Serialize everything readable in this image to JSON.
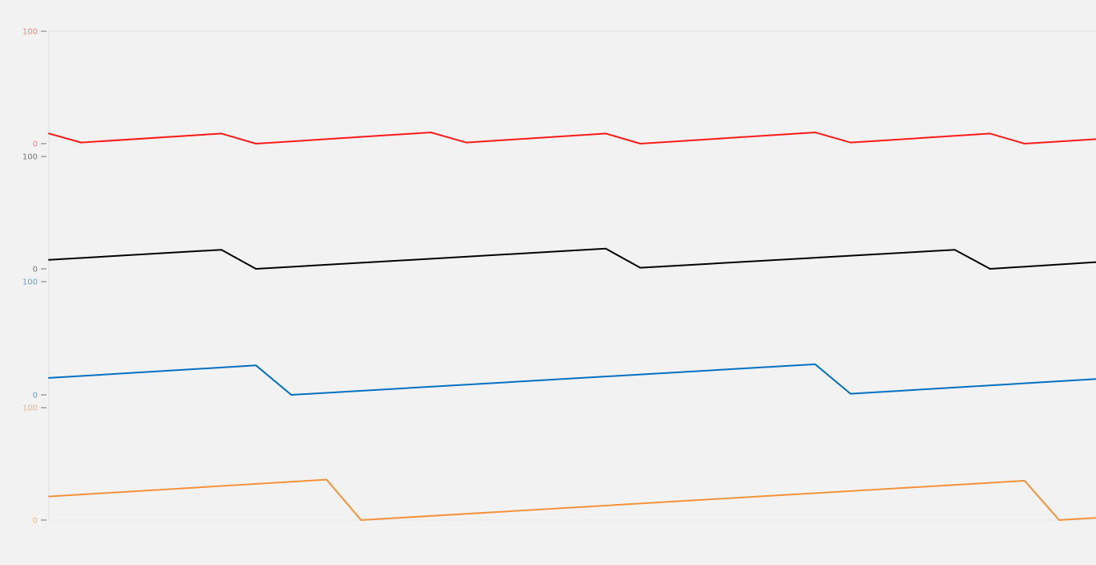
{
  "chart_data": {
    "type": "line",
    "title": "",
    "xlabel": "",
    "grid": false,
    "x_range": [
      0,
      1305
    ],
    "panels": [
      {
        "name": "",
        "color": "#ff1a1a",
        "tick_color": "#ff7f7f",
        "ylim": [
          0,
          100
        ],
        "tick_labels": [
          "100",
          "0"
        ],
        "series": {
          "x": [
            0,
            40,
            215,
            258,
            476,
            520,
            694,
            737,
            955,
            999,
            1173,
            1216,
            1305
          ],
          "y": [
            9,
            1,
            9,
            0,
            10,
            1,
            9,
            0,
            10,
            1,
            9,
            0,
            4
          ]
        }
      },
      {
        "name": "",
        "color": "#000000",
        "tick_color": "#777777",
        "ylim": [
          0,
          100
        ],
        "tick_labels": [
          "100",
          "0"
        ],
        "series": {
          "x": [
            0,
            215,
            258,
            694,
            737,
            1129,
            1173,
            1305
          ],
          "y": [
            8,
            17,
            0,
            18,
            1,
            17,
            0,
            6
          ]
        }
      },
      {
        "name": "",
        "color": "#0070c0",
        "tick_color": "#5ba3dc",
        "ylim": [
          0,
          100
        ],
        "tick_labels": [
          "100",
          "0"
        ],
        "series": {
          "x": [
            0,
            258,
            302,
            955,
            999,
            1305
          ],
          "y": [
            15,
            26,
            0,
            27,
            1,
            14
          ]
        }
      },
      {
        "name": "",
        "color": "#f5913a",
        "tick_color": "#f7b27a",
        "ylim": [
          0,
          100
        ],
        "tick_labels": [
          "100",
          "0"
        ],
        "series": {
          "x": [
            0,
            346,
            389,
            1216,
            1259,
            1305
          ],
          "y": [
            21,
            36,
            0,
            35,
            0,
            2
          ]
        }
      }
    ]
  }
}
